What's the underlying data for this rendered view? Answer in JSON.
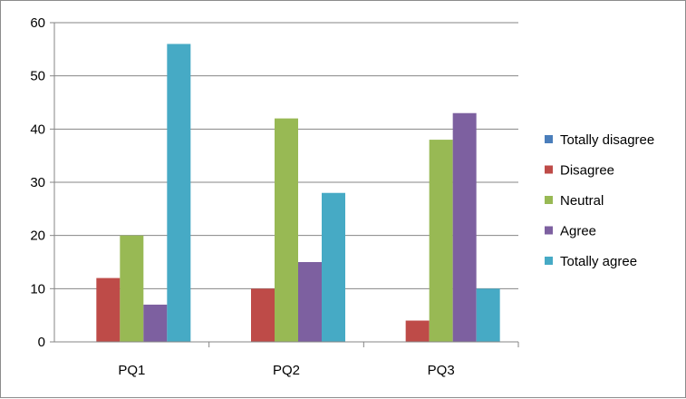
{
  "chart_data": {
    "type": "bar",
    "categories": [
      "PQ1",
      "PQ2",
      "PQ3"
    ],
    "series": [
      {
        "name": "Totally disagree",
        "color": "#4a7ebb",
        "values": [
          0,
          0,
          0
        ]
      },
      {
        "name": "Disagree",
        "color": "#be4b48",
        "values": [
          12,
          10,
          4
        ]
      },
      {
        "name": "Neutral",
        "color": "#98b954",
        "values": [
          20,
          42,
          38
        ]
      },
      {
        "name": "Agree",
        "color": "#7d60a0",
        "values": [
          7,
          15,
          43
        ]
      },
      {
        "name": "Totally agree",
        "color": "#46aac5",
        "values": [
          56,
          28,
          10
        ]
      }
    ],
    "ylim": [
      0,
      60
    ],
    "yticks": [
      "0",
      "10",
      "20",
      "30",
      "40",
      "50",
      "60"
    ],
    "grid": true,
    "legend_position": "right"
  }
}
